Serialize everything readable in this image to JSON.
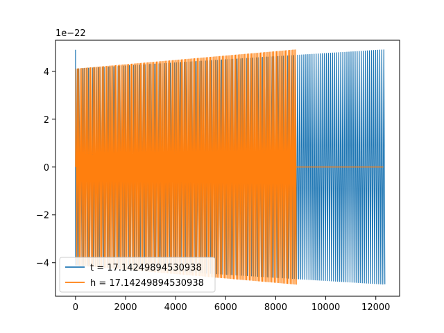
{
  "chart_data": {
    "type": "line",
    "title": "",
    "xlabel": "",
    "ylabel": "",
    "y_scale_label": "1e−22",
    "xlim": [
      -800,
      12950
    ],
    "ylim": [
      -5.4,
      5.3
    ],
    "x_ticks": [
      0,
      2000,
      4000,
      6000,
      8000,
      10000,
      12000
    ],
    "x_tick_labels": [
      "0",
      "2000",
      "4000",
      "6000",
      "8000",
      "10000",
      "12000"
    ],
    "y_ticks": [
      -4,
      -2,
      0,
      2,
      4
    ],
    "y_tick_labels": [
      "−4",
      "−2",
      "0",
      "2",
      "4"
    ],
    "grid": false,
    "legend_position": "lower-left",
    "series": [
      {
        "name": "t = 17.14249894530938",
        "color": "#1f77b4",
        "x_start": 0,
        "x_end": 12300,
        "cycles": 150,
        "spike_amplitude": 4.9,
        "amplitude_start": 4.1,
        "amplitude_end": 4.9
      },
      {
        "name": "h = 17.14249894530938",
        "color": "#ff7f0e",
        "x_start": 0,
        "x_end": 8780,
        "cycles": 150,
        "amplitude_start": 4.1,
        "amplitude_end": 4.9,
        "flat_until": 12300,
        "flat_value": 0
      }
    ]
  }
}
